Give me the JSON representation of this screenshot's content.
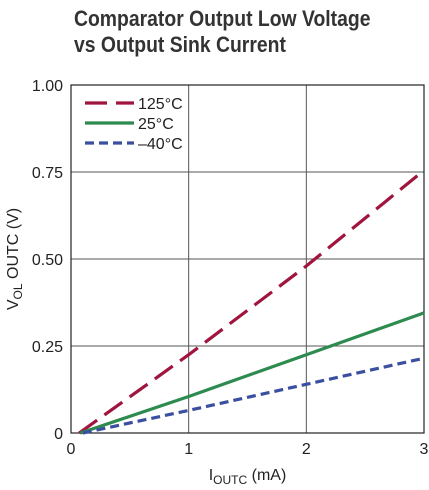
{
  "chart_data": {
    "type": "line",
    "title_lines": [
      "Comparator Output Low Voltage",
      "vs Output Sink Current"
    ],
    "xlabel": {
      "main": "I",
      "sub": "OUTC",
      "unit": " (mA)"
    },
    "ylabel": {
      "main": "V",
      "sub": "OL",
      "rest": " OUTC (V)"
    },
    "xlim": [
      0,
      3
    ],
    "ylim": [
      0,
      1.0
    ],
    "x_ticks": [
      0,
      1,
      2,
      3
    ],
    "x_tick_labels": [
      "0",
      "1",
      "2",
      "3"
    ],
    "y_ticks": [
      0,
      0.25,
      0.5,
      0.75,
      1.0
    ],
    "y_tick_labels": [
      "0",
      "0.25",
      "0.50",
      "0.75",
      "1.00"
    ],
    "grid": true,
    "legend_position": "top-left",
    "series": [
      {
        "name": "125°C",
        "color": "#a0153e",
        "dash": "long-dash",
        "x": [
          0.07,
          1,
          2,
          3
        ],
        "y": [
          0,
          0.225,
          0.48,
          0.755
        ]
      },
      {
        "name": "25°C",
        "color": "#2e8b4f",
        "dash": "solid",
        "x": [
          0.08,
          1,
          2,
          3
        ],
        "y": [
          0,
          0.105,
          0.225,
          0.345
        ]
      },
      {
        "name": "–40°C",
        "color": "#3a4fa0",
        "dash": "short-dash",
        "x": [
          0.1,
          1,
          2,
          3
        ],
        "y": [
          0,
          0.065,
          0.14,
          0.215
        ]
      }
    ]
  }
}
